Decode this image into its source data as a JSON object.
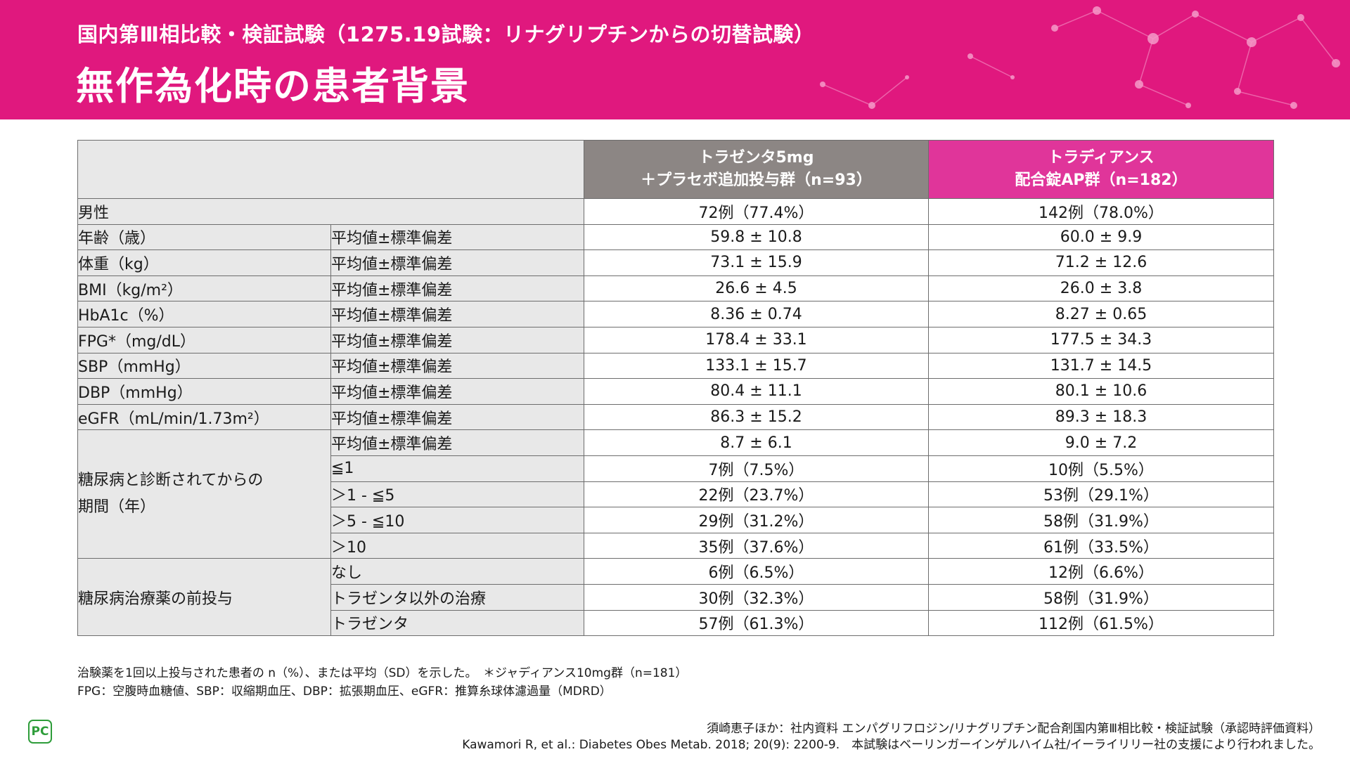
{
  "header": {
    "subtitle": "国内第Ⅲ相比較・検証試験（1275.19試験：リナグリプチンからの切替試験）",
    "title": "無作為化時の患者背景"
  },
  "table": {
    "columns": [
      {
        "line1": "トラゼンタ5mg",
        "line2": "＋プラセボ追加投与群（n=93）"
      },
      {
        "line1": "トラディアンス",
        "line2": "配合錠AP群（n=182）"
      }
    ],
    "stat_label": "平均値±標準偏差",
    "male": {
      "label": "男性",
      "a": "72例（77.4%）",
      "b": "142例（78.0%）"
    },
    "stats": [
      {
        "label": "年齢（歳）",
        "a": "59.8 ± 10.8",
        "b": "60.0 ± 9.9"
      },
      {
        "label": "体重（kg）",
        "a": "73.1 ± 15.9",
        "b": "71.2 ± 12.6"
      },
      {
        "label": "BMI（kg/m²）",
        "a": "26.6 ± 4.5",
        "b": "26.0 ± 3.8"
      },
      {
        "label": "HbA1c（%）",
        "a": "8.36 ± 0.74",
        "b": "8.27 ± 0.65"
      },
      {
        "label": "FPG*（mg/dL）",
        "a": "178.4 ± 33.1",
        "b": "177.5 ± 34.3"
      },
      {
        "label": "SBP（mmHg）",
        "a": "133.1 ± 15.7",
        "b": "131.7 ± 14.5"
      },
      {
        "label": "DBP（mmHg）",
        "a": "80.4 ± 11.1",
        "b": "80.1 ± 10.6"
      },
      {
        "label": "eGFR（mL/min/1.73m²）",
        "a": "86.3 ± 15.2",
        "b": "89.3 ± 18.3"
      }
    ],
    "duration": {
      "label_line1": "糖尿病と診断されてからの",
      "label_line2": "期間（年）",
      "rows": [
        {
          "sub": "平均値±標準偏差",
          "a": "8.7 ± 6.1",
          "b": "9.0 ± 7.2"
        },
        {
          "sub": "≦1",
          "a": "7例（7.5%）",
          "b": "10例（5.5%）"
        },
        {
          "sub": "＞1 - ≦5",
          "a": "22例（23.7%）",
          "b": "53例（29.1%）"
        },
        {
          "sub": "＞5 - ≦10",
          "a": "29例（31.2%）",
          "b": "58例（31.9%）"
        },
        {
          "sub": "＞10",
          "a": "35例（37.6%）",
          "b": "61例（33.5%）"
        }
      ]
    },
    "prior": {
      "label": "糖尿病治療薬の前投与",
      "rows": [
        {
          "sub": "なし",
          "a": "6例（6.5%）",
          "b": "12例（6.6%）"
        },
        {
          "sub": "トラゼンタ以外の治療",
          "a": "30例（32.3%）",
          "b": "58例（31.9%）"
        },
        {
          "sub": "トラゼンタ",
          "a": "57例（61.3%）",
          "b": "112例（61.5%）"
        }
      ]
    }
  },
  "footnotes": {
    "line1": "治験薬を1回以上投与された患者の n（%）、または平均（SD）を示した。　＊ジャディアンス10mg群（n=181）",
    "line2": "FPG：空腹時血糖値、SBP：収縮期血圧、DBP：拡張期血圧、eGFR：推算糸球体濾過量（MDRD）"
  },
  "reference": {
    "line1": "須崎恵子ほか：社内資料 エンパグリフロジン/リナグリプチン配合剤国内第Ⅲ相比較・検証試験（承認時評価資料）",
    "line2": "Kawamori R, et al.: Diabetes Obes Metab. 2018; 20(9): 2200-9.　本試験はベーリンガーインゲルハイム社/イーライリリー社の支援により行われました。"
  },
  "logo": "PC",
  "colors": {
    "header": "#e0187e",
    "col_trazenta": "#8c8684",
    "col_tradiance": "#e0359a",
    "label_bg": "#e8e8e8"
  }
}
